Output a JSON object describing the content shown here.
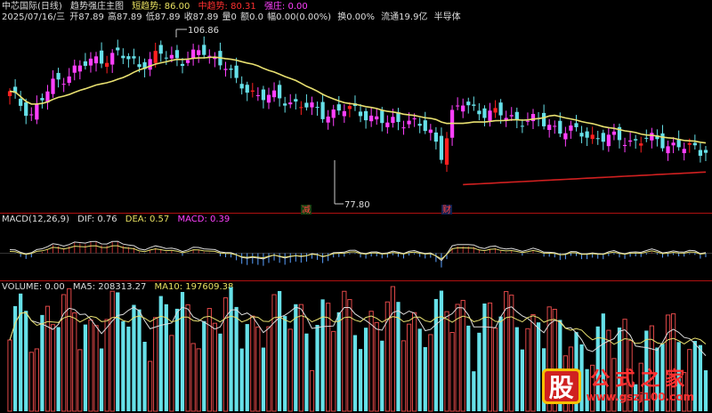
{
  "header": {
    "line1": {
      "stock": "中芯国际(日线)",
      "indicator": "趋势强庄主图",
      "short_label": "短趋势: 86.00",
      "mid_label": "中趋势: 80.31",
      "strong_label": "强庄: 0.00"
    },
    "line2": {
      "date": "2025/07/16/三",
      "open": "开87.89",
      "high": "高87.89",
      "low": "低87.89",
      "close": "收87.89",
      "vol": "量0",
      "amount": "额0.0",
      "change": "幅0.00(0.00%)",
      "turnover": "换0.00%",
      "float": "流通19.9亿",
      "sector": "半导体"
    }
  },
  "macd_header": {
    "name": "MACD(12,26,9)",
    "dif": "DIF: 0.76",
    "dea": "DEA: 0.57",
    "macd": "MACD: 0.39"
  },
  "vol_header": {
    "name": "VOLUME: 0.00",
    "ma5": "MA5: 208313.27",
    "ma10": "MA10: 197609.38"
  },
  "annotations": {
    "high_label": "106.86",
    "low_label": "77.80",
    "marker_a": "减",
    "marker_b": "财"
  },
  "watermark": {
    "logo_char": "股",
    "name": "公式之家",
    "url": "www.gszj100.com"
  },
  "colors": {
    "up": "#ff40ff",
    "up_strong": "#ff2020",
    "down": "#66e0e8",
    "ma_yellow": "#e8e070",
    "ma_red": "#d02020",
    "macd_pos": "#c03030",
    "macd_neg": "#5aa0ff"
  },
  "chart_data": {
    "type": "candlestick",
    "xlabel": "",
    "ylabel": "",
    "ylim": [
      74,
      110
    ],
    "price_high": 106.86,
    "price_low": 77.8,
    "count": 130
  }
}
